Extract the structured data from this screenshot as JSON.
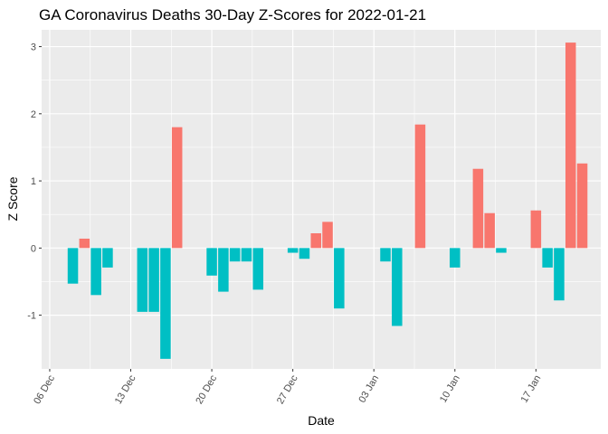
{
  "chart_data": {
    "type": "bar",
    "title": "GA Coronavirus Deaths 30-Day Z-Scores for 2022-01-21",
    "xlabel": "Date",
    "ylabel": "Z Score",
    "ylim": [
      -1.8,
      3.25
    ],
    "xlim_day": [
      -0.7,
      47.6
    ],
    "y_ticks": [
      -1,
      0,
      1,
      2,
      3
    ],
    "x_ticks": [
      {
        "day": 0,
        "label": "06 Dec"
      },
      {
        "day": 7,
        "label": "13 Dec"
      },
      {
        "day": 14,
        "label": "20 Dec"
      },
      {
        "day": 21,
        "label": "27 Dec"
      },
      {
        "day": 28,
        "label": "03 Jan"
      },
      {
        "day": 35,
        "label": "10 Jan"
      },
      {
        "day": 42,
        "label": "17 Jan"
      }
    ],
    "grid": true,
    "positive_color": "#F8766D",
    "negative_color": "#00BFC4",
    "panel_color": "#EBEBEB",
    "series": [
      {
        "name": "Z Score",
        "points": [
          {
            "day": 2,
            "value": -0.53
          },
          {
            "day": 3,
            "value": 0.14
          },
          {
            "day": 4,
            "value": -0.7
          },
          {
            "day": 5,
            "value": -0.29
          },
          {
            "day": 8,
            "value": -0.95
          },
          {
            "day": 9,
            "value": -0.95
          },
          {
            "day": 10,
            "value": -1.65
          },
          {
            "day": 11,
            "value": 1.8
          },
          {
            "day": 14,
            "value": -0.41
          },
          {
            "day": 15,
            "value": -0.65
          },
          {
            "day": 16,
            "value": -0.2
          },
          {
            "day": 17,
            "value": -0.2
          },
          {
            "day": 18,
            "value": -0.62
          },
          {
            "day": 21,
            "value": -0.07
          },
          {
            "day": 22,
            "value": -0.16
          },
          {
            "day": 23,
            "value": 0.22
          },
          {
            "day": 24,
            "value": 0.39
          },
          {
            "day": 25,
            "value": -0.9
          },
          {
            "day": 29,
            "value": -0.2
          },
          {
            "day": 30,
            "value": -1.16
          },
          {
            "day": 32,
            "value": 1.84
          },
          {
            "day": 35,
            "value": -0.29
          },
          {
            "day": 37,
            "value": 1.18
          },
          {
            "day": 38,
            "value": 0.52
          },
          {
            "day": 39,
            "value": -0.07
          },
          {
            "day": 42,
            "value": 0.56
          },
          {
            "day": 43,
            "value": -0.29
          },
          {
            "day": 44,
            "value": -0.78
          },
          {
            "day": 45,
            "value": 3.06
          },
          {
            "day": 46,
            "value": 1.26
          }
        ]
      }
    ]
  }
}
